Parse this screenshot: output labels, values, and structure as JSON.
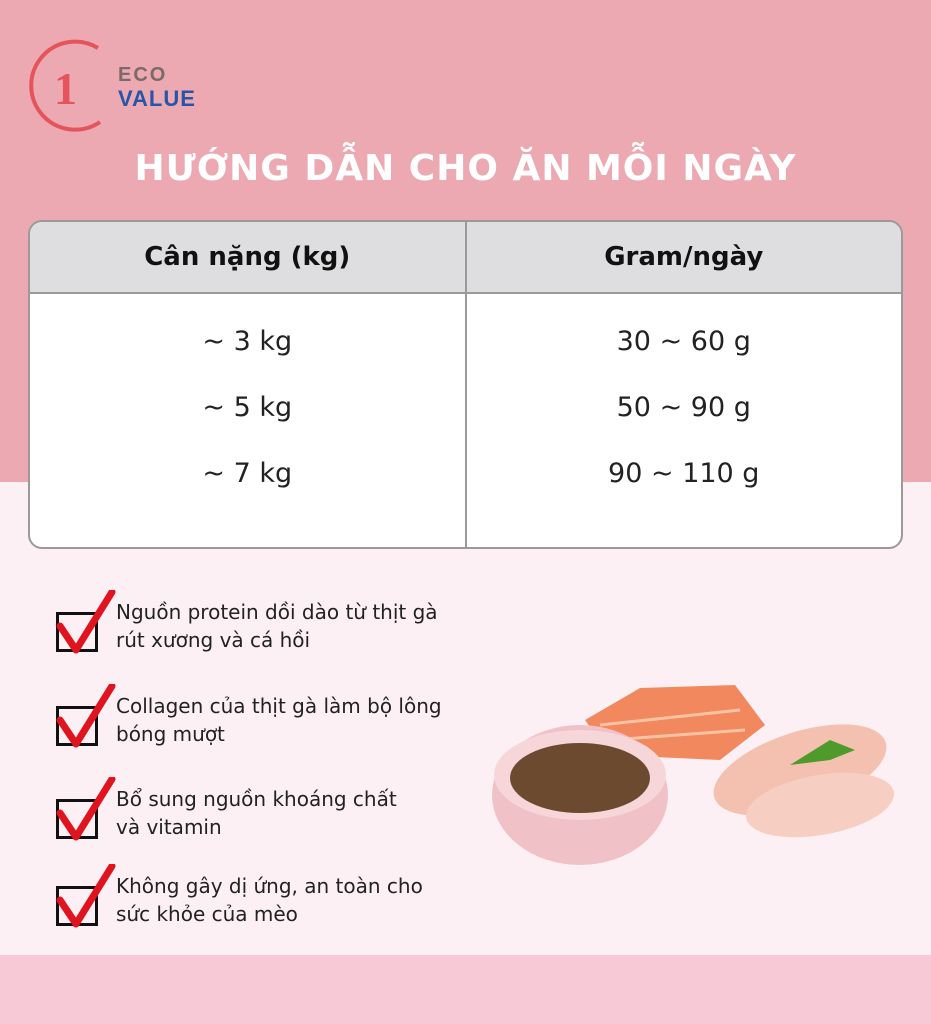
{
  "logo": {
    "mark": "1",
    "eco": "ECO",
    "value": "VALUE"
  },
  "title": "HƯỚNG DẪN CHO ĂN MỖI NGÀY",
  "table": {
    "headers": [
      "Cân nặng (kg)",
      "Gram/ngày"
    ],
    "weights": [
      "~ 3 kg",
      "~ 5 kg",
      "~ 7 kg"
    ],
    "grams": [
      "30 ~ 60 g",
      "50 ~ 90 g",
      "90 ~ 110 g"
    ]
  },
  "features": [
    {
      "line1": "Nguồn protein dồi dào từ thịt gà",
      "line2": "rút xương và cá hồi"
    },
    {
      "line1": "Collagen của thịt gà làm bộ lông",
      "line2": "bóng mượt"
    },
    {
      "line1": "Bổ sung nguồn khoáng chất",
      "line2": "và vitamin"
    },
    {
      "line1": "Không gây dị ứng, an toàn cho",
      "line2": "sức khỏe của mèo"
    }
  ],
  "colors": {
    "top_bg": "#eca9b1",
    "bottom_bg": "#fcf0f4",
    "check": "#e0141e",
    "logo_red": "#e5545a",
    "logo_blue": "#2756a8"
  },
  "icons": [
    "checkbox-checked-icon"
  ]
}
